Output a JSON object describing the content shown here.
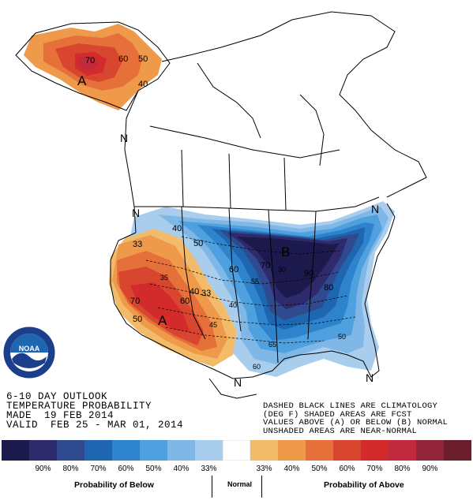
{
  "title_lines": [
    "6-10 DAY OUTLOOK",
    "TEMPERATURE PROBABILITY",
    "MADE  19 FEB 2014",
    "VALID  FEB 25 - MAR 01, 2014"
  ],
  "note_lines": [
    "DASHED BLACK LINES ARE CLIMATOLOGY",
    "(DEG F) SHADED AREAS ARE FCST",
    "VALUES ABOVE (A) OR BELOW (B) NORMAL",
    "UNSHADED AREAS ARE NEAR-NORMAL"
  ],
  "logo_text": "NOAA",
  "region_markers": {
    "above_west": "A",
    "above_alaska": "A",
    "below_central": "B"
  },
  "normal_markers": [
    "N",
    "N",
    "N",
    "N",
    "N"
  ],
  "contour_labels": {
    "alaska": [
      "70",
      "60",
      "50",
      "40"
    ],
    "west_above": [
      "70",
      "60",
      "50",
      "40",
      "33"
    ],
    "below": [
      "90",
      "80",
      "70",
      "60",
      "50",
      "40",
      "33"
    ]
  },
  "climatology_labels": [
    "35",
    "30",
    "40",
    "45",
    "50",
    "55",
    "60",
    "65"
  ],
  "legend": {
    "colors": [
      "#1c1a4d",
      "#2e2a6b",
      "#2f4a8e",
      "#1f66b0",
      "#2e84cc",
      "#4ea1de",
      "#7fb8e6",
      "#a9cdec",
      "#ffffff",
      "#f2bb6a",
      "#ee9a4a",
      "#e6703a",
      "#d9462f",
      "#d32b2b",
      "#c02a3c",
      "#92253a",
      "#6a1e2c"
    ],
    "tick_labels": [
      "90%",
      "80%",
      "70%",
      "60%",
      "50%",
      "40%",
      "33%",
      "33%",
      "40%",
      "50%",
      "60%",
      "70%",
      "80%",
      "90%"
    ],
    "caption_below": "Probability of Below",
    "caption_normal": "Normal",
    "caption_above": "Probability of Above"
  }
}
